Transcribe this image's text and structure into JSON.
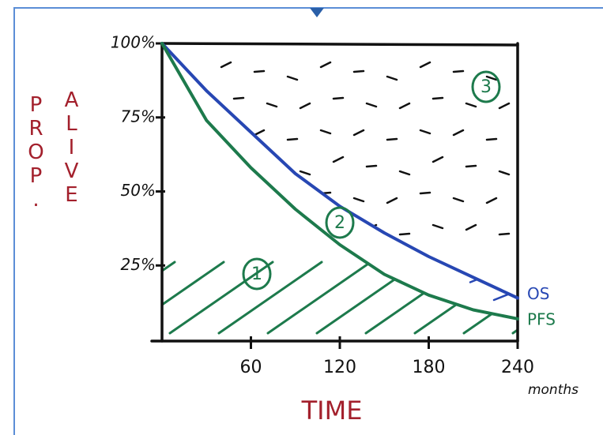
{
  "chart_data": {
    "type": "line",
    "ylabel": [
      "PROP.",
      "ALIVE"
    ],
    "xlabel": "TIME",
    "x_unit": "months",
    "x": [
      0,
      30,
      60,
      90,
      120,
      150,
      180,
      210,
      240
    ],
    "series": [
      {
        "name": "OS",
        "color": "#2747b3",
        "values": [
          100,
          84,
          70,
          56,
          45,
          36,
          28,
          21,
          14
        ]
      },
      {
        "name": "PFS",
        "color": "#1d7a4c",
        "values": [
          100,
          74,
          58,
          44,
          32,
          22,
          15,
          10,
          7
        ]
      }
    ],
    "xlim": [
      0,
      240
    ],
    "ylim": [
      0,
      100
    ],
    "xticks": [
      60,
      120,
      180,
      240
    ],
    "yticks": [
      {
        "value": 100,
        "label": "100%"
      },
      {
        "value": 75,
        "label": "75%"
      },
      {
        "value": 50,
        "label": "50%"
      },
      {
        "value": 25,
        "label": "25%"
      }
    ],
    "annotations": [
      "1",
      "2",
      "3"
    ],
    "label_color": "#a3202c"
  }
}
